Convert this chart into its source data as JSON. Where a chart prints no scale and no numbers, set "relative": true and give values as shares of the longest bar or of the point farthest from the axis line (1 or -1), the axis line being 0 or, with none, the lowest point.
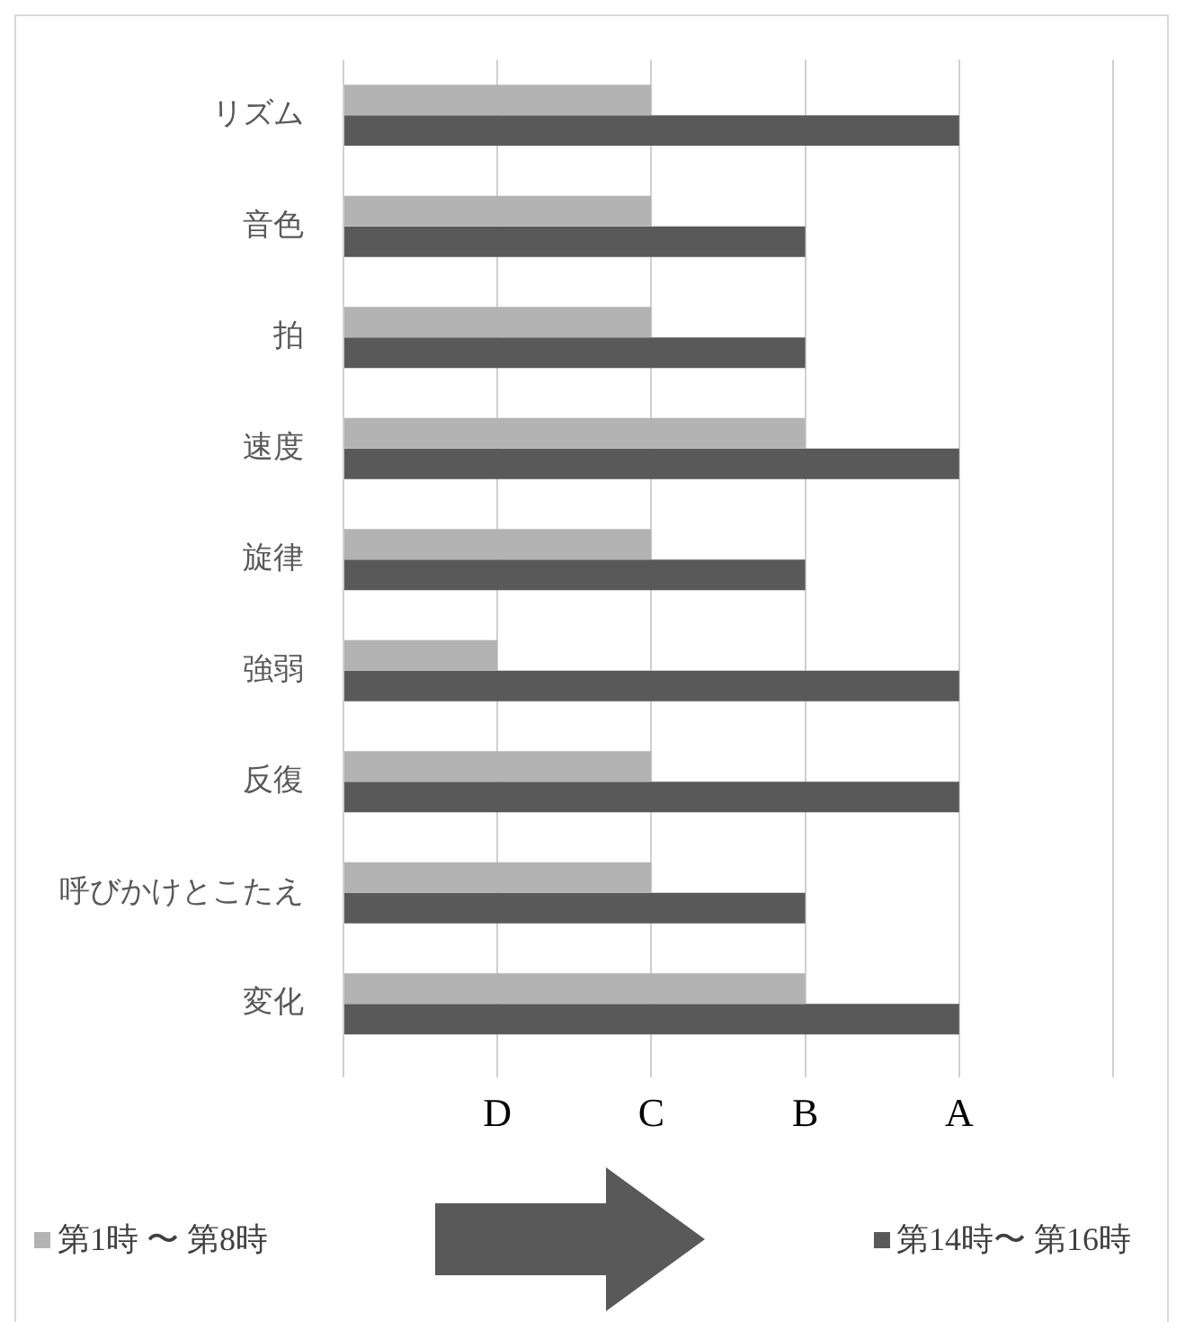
{
  "chart_data": {
    "type": "bar",
    "orientation": "horizontal",
    "relative": true,
    "categories": [
      "リズム",
      "音色",
      "拍",
      "速度",
      "旋律",
      "強弱",
      "反復",
      "呼びかけとこたえ",
      "変化"
    ],
    "series": [
      {
        "name": "第1時 〜 第8時",
        "color": "#b3b3b3",
        "values": [
          0.5,
          0.5,
          0.5,
          0.75,
          0.5,
          0.25,
          0.5,
          0.5,
          0.75
        ]
      },
      {
        "name": "第14時〜 第16時",
        "color": "#595959",
        "values": [
          1,
          0.75,
          0.75,
          1,
          0.75,
          1,
          1,
          0.75,
          1
        ]
      }
    ],
    "annotations": [
      "D",
      "C",
      "B",
      "A"
    ],
    "grid": "x",
    "legend": "bottom"
  }
}
